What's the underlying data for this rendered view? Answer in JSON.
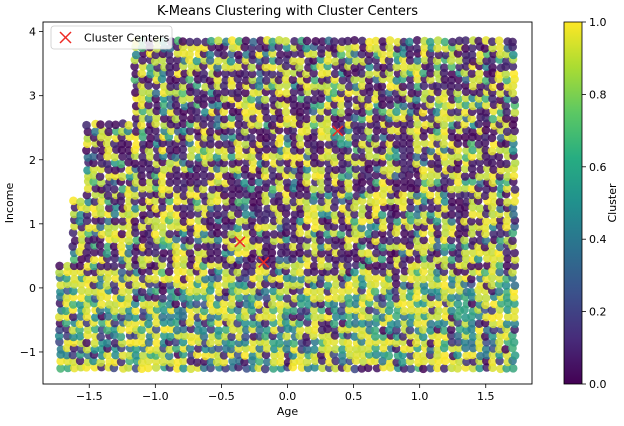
{
  "chart_data": {
    "type": "scatter",
    "title": "K-Means Clustering with Cluster Centers",
    "xlabel": "Age",
    "ylabel": "Income",
    "xlim": [
      -1.85,
      1.85
    ],
    "ylim": [
      -1.5,
      4.15
    ],
    "xticks": [
      -1.5,
      -1.0,
      -0.5,
      0.0,
      0.5,
      1.0,
      1.5
    ],
    "xtick_labels": [
      "−1.5",
      "−1.0",
      "−0.5",
      "0.0",
      "0.5",
      "1.0",
      "1.5"
    ],
    "yticks": [
      -1,
      0,
      1,
      2,
      3,
      4
    ],
    "ytick_labels": [
      "−1",
      "0",
      "1",
      "2",
      "3",
      "4"
    ],
    "grid": false,
    "colormap": "viridis",
    "colorbar": {
      "label": "Cluster",
      "range": [
        0.0,
        1.0
      ],
      "ticks": [
        0.0,
        0.2,
        0.4,
        0.6,
        0.8,
        1.0
      ],
      "tick_labels": [
        "0.0",
        "0.2",
        "0.4",
        "0.6",
        "0.8",
        "1.0"
      ]
    },
    "point_region": {
      "x_range": [
        -1.72,
        1.72
      ],
      "y_min": -1.25,
      "upper_envelope": [
        {
          "x": -1.72,
          "y": 0.38
        },
        {
          "x": -1.6,
          "y": 1.42
        },
        {
          "x": -1.5,
          "y": 2.6
        },
        {
          "x": -1.12,
          "y": 3.9
        },
        {
          "x": 1.72,
          "y": 3.9
        }
      ]
    },
    "series": [
      {
        "name": "Cluster Centers",
        "marker": "x",
        "color": "#ee2a24",
        "points": [
          {
            "x": 0.38,
            "y": 2.45
          },
          {
            "x": -0.36,
            "y": 0.72
          },
          {
            "x": -0.18,
            "y": 0.4
          }
        ]
      }
    ],
    "legend": {
      "placement": "top-left",
      "entries": [
        "Cluster Centers"
      ]
    }
  }
}
